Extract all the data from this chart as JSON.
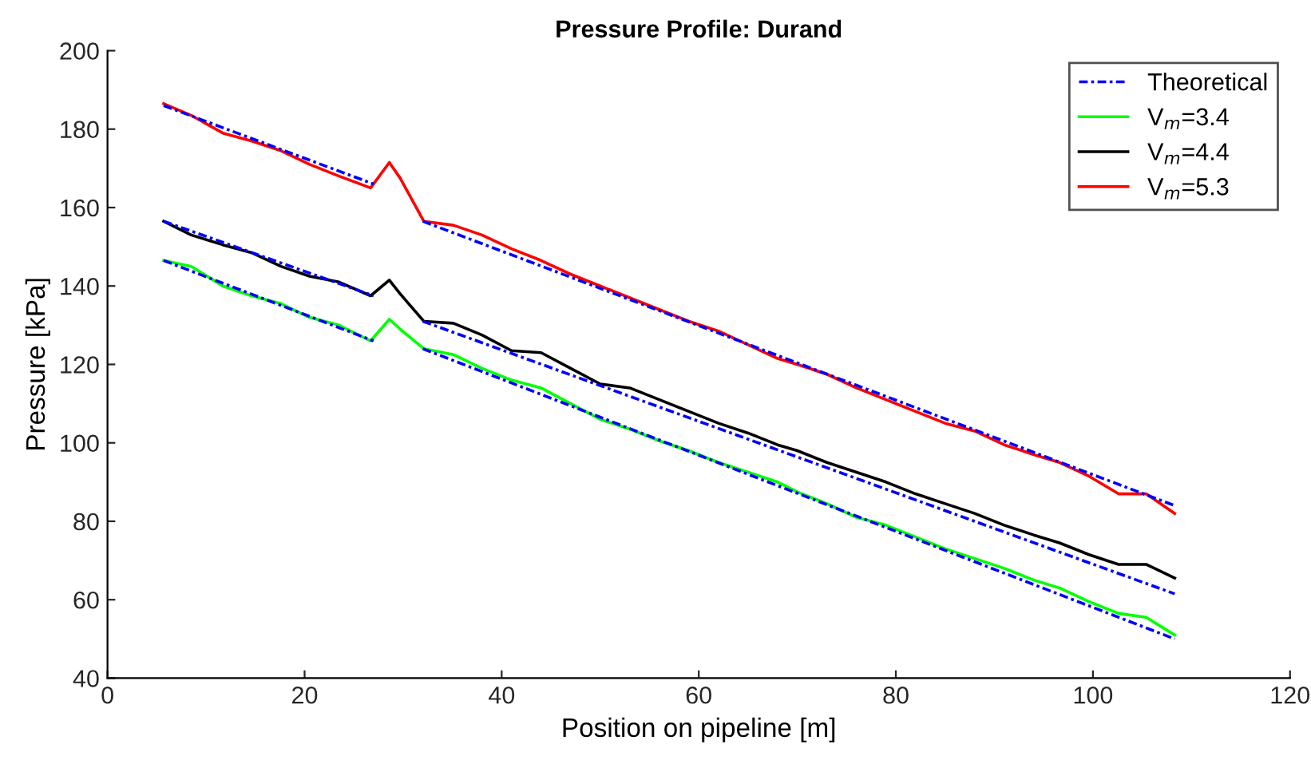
{
  "chart_data": {
    "type": "line",
    "title": "Pressure Profile: Durand",
    "xlabel": "Position on pipeline [m]",
    "ylabel": "Pressure [kPa]",
    "xlim": [
      0,
      120
    ],
    "ylim": [
      40,
      200
    ],
    "xticks": [
      0,
      20,
      40,
      60,
      80,
      100,
      120
    ],
    "yticks": [
      40,
      60,
      80,
      100,
      120,
      140,
      160,
      180,
      200
    ],
    "grid": false,
    "legend": "top right",
    "series": [
      {
        "name": "Theoretical",
        "color": "#0000ff",
        "line_style": "dashdot",
        "x": [
          5.7,
          27
        ],
        "values": [
          186,
          166
        ]
      },
      {
        "color": "#0000ff",
        "line_style": "dashdot",
        "x": [
          32,
          108.3
        ],
        "values": [
          156.5,
          84
        ]
      },
      {
        "color": "#0000ff",
        "line_style": "dashdot",
        "x": [
          5.7,
          27
        ],
        "values": [
          156.5,
          137.5
        ]
      },
      {
        "color": "#0000ff",
        "line_style": "dashdot",
        "x": [
          32,
          108.3
        ],
        "values": [
          131,
          61.5
        ]
      },
      {
        "color": "#0000ff",
        "line_style": "dashdot",
        "x": [
          5.7,
          27
        ],
        "values": [
          146.5,
          126
        ]
      },
      {
        "color": "#0000ff",
        "line_style": "dashdot",
        "x": [
          32,
          108.3
        ],
        "values": [
          124,
          50
        ]
      },
      {
        "name": "V$_{m}$=3.4",
        "color": "#00ff00",
        "line_style": "solid",
        "x": [
          5.7,
          8.5,
          11.7,
          14.6,
          17.6,
          20.5,
          23.5,
          26.7,
          28.6,
          29.7,
          32.1,
          35.1,
          38,
          41,
          44,
          47,
          50,
          53,
          56,
          59,
          62,
          65,
          68,
          70,
          73,
          76,
          79,
          82,
          85,
          88,
          91,
          94,
          96.6,
          99.6,
          102.6,
          105.4,
          108.3
        ],
        "values": [
          146.5,
          145,
          140,
          137.5,
          135.5,
          132,
          130,
          126,
          131.5,
          129,
          124,
          122.5,
          119,
          116,
          114,
          110,
          106,
          103.5,
          100.5,
          98,
          95,
          92.5,
          90,
          87.5,
          84.5,
          81,
          79,
          76,
          73,
          70.5,
          68,
          65,
          63,
          59.5,
          56.5,
          55.5,
          51
        ]
      },
      {
        "name": "V$_{m}$=4.4",
        "color": "#000000",
        "line_style": "solid",
        "x": [
          5.7,
          8.5,
          11.7,
          14.6,
          17.6,
          20.5,
          23.5,
          26.7,
          28.6,
          29.7,
          32.1,
          35.1,
          38,
          41,
          44,
          47,
          50,
          53,
          56,
          59,
          62,
          65,
          68,
          70,
          73,
          76,
          79,
          82,
          85,
          88,
          91,
          94,
          96.6,
          99.6,
          102.6,
          105.4,
          108.3
        ],
        "values": [
          156.5,
          153,
          150.5,
          148.5,
          145,
          142.5,
          141,
          137.5,
          141.5,
          138,
          131,
          130.5,
          127.5,
          123.5,
          123,
          119,
          115,
          114,
          111,
          108,
          105,
          102.5,
          99.5,
          98,
          95,
          92.5,
          90,
          87,
          84.5,
          82,
          79,
          76.5,
          74.5,
          71.5,
          69,
          69,
          65.5
        ]
      },
      {
        "name": "V$_{m}$=5.3",
        "color": "#ff0000",
        "line_style": "solid",
        "x": [
          5.7,
          8.5,
          11.7,
          14.6,
          17.6,
          20.5,
          23.5,
          26.7,
          28.6,
          29.7,
          32.1,
          35.1,
          38,
          41,
          44,
          47,
          50,
          53,
          56,
          59,
          62,
          65,
          68,
          70,
          73,
          76,
          79,
          82,
          85,
          88,
          91,
          94,
          96.6,
          99.6,
          102.6,
          105.4,
          108.3
        ],
        "values": [
          186.5,
          183.5,
          179,
          177,
          174.5,
          171,
          168,
          165,
          171.5,
          167.5,
          156.5,
          155.5,
          153,
          149.5,
          146.5,
          143,
          140,
          137,
          134,
          131,
          128.5,
          125,
          121.5,
          120,
          117.5,
          114,
          111,
          108,
          105,
          103,
          99.5,
          97,
          95,
          91.5,
          87,
          87,
          82
        ]
      }
    ]
  }
}
